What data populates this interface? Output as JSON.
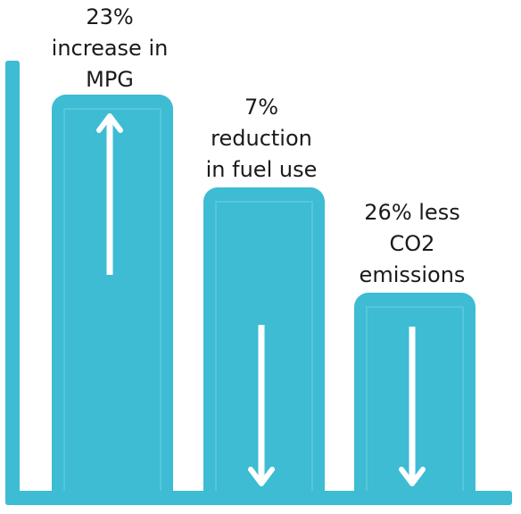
{
  "chart_data": {
    "type": "bar",
    "categories": [
      "MPG",
      "Fuel use",
      "CO2 emissions"
    ],
    "values": [
      23,
      7,
      26
    ],
    "labels": [
      [
        "23%",
        "increase in",
        "MPG"
      ],
      [
        "7%",
        "reduction",
        "in fuel use"
      ],
      [
        "26% less",
        "CO2",
        "emissions"
      ]
    ],
    "directions": [
      "up",
      "down",
      "down"
    ],
    "title": "",
    "xlabel": "",
    "ylabel": "",
    "grid": false,
    "legend": "none",
    "colors": {
      "bar": "#3dbcd3",
      "bar_inner": "#5fcade",
      "axis": "#3dbcd3",
      "arrow": "#ffffff",
      "text": "#1a1a1a"
    }
  }
}
